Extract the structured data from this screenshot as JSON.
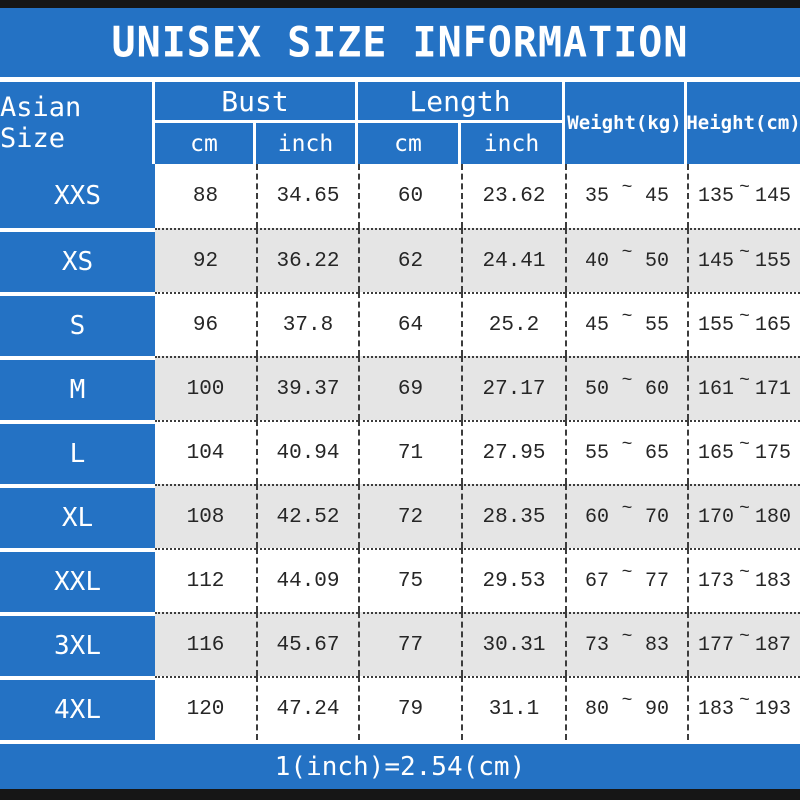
{
  "header": {
    "title": "UNISEX SIZE INFORMATION"
  },
  "footer": {
    "text": "1(inch)=2.54(cm)"
  },
  "colors": {
    "accent_blue": "#2472c4",
    "alt_row_gray": "#e5e5e5",
    "frame_black": "#161616",
    "separator_line": "#3c3c3c"
  },
  "table": {
    "size_header": "Asian Size",
    "groups": [
      {
        "label": "Bust",
        "sub": [
          "cm",
          "inch"
        ]
      },
      {
        "label": "Length",
        "sub": [
          "cm",
          "inch"
        ]
      }
    ],
    "weight_header": "Weight(kg)",
    "height_header": "Height(cm)",
    "tilde": "~",
    "rows": [
      {
        "size": "XXS",
        "bust_cm": "88",
        "bust_inch": "34.65",
        "length_cm": "60",
        "length_inch": "23.62",
        "weight": [
          "35",
          "45"
        ],
        "height": [
          "135",
          "145"
        ]
      },
      {
        "size": "XS",
        "bust_cm": "92",
        "bust_inch": "36.22",
        "length_cm": "62",
        "length_inch": "24.41",
        "weight": [
          "40",
          "50"
        ],
        "height": [
          "145",
          "155"
        ]
      },
      {
        "size": "S",
        "bust_cm": "96",
        "bust_inch": "37.8",
        "length_cm": "64",
        "length_inch": "25.2",
        "weight": [
          "45",
          "55"
        ],
        "height": [
          "155",
          "165"
        ]
      },
      {
        "size": "M",
        "bust_cm": "100",
        "bust_inch": "39.37",
        "length_cm": "69",
        "length_inch": "27.17",
        "weight": [
          "50",
          "60"
        ],
        "height": [
          "161",
          "171"
        ]
      },
      {
        "size": "L",
        "bust_cm": "104",
        "bust_inch": "40.94",
        "length_cm": "71",
        "length_inch": "27.95",
        "weight": [
          "55",
          "65"
        ],
        "height": [
          "165",
          "175"
        ]
      },
      {
        "size": "XL",
        "bust_cm": "108",
        "bust_inch": "42.52",
        "length_cm": "72",
        "length_inch": "28.35",
        "weight": [
          "60",
          "70"
        ],
        "height": [
          "170",
          "180"
        ]
      },
      {
        "size": "XXL",
        "bust_cm": "112",
        "bust_inch": "44.09",
        "length_cm": "75",
        "length_inch": "29.53",
        "weight": [
          "67",
          "77"
        ],
        "height": [
          "173",
          "183"
        ]
      },
      {
        "size": "3XL",
        "bust_cm": "116",
        "bust_inch": "45.67",
        "length_cm": "77",
        "length_inch": "30.31",
        "weight": [
          "73",
          "83"
        ],
        "height": [
          "177",
          "187"
        ]
      },
      {
        "size": "4XL",
        "bust_cm": "120",
        "bust_inch": "47.24",
        "length_cm": "79",
        "length_inch": "31.1",
        "weight": [
          "80",
          "90"
        ],
        "height": [
          "183",
          "193"
        ]
      }
    ]
  },
  "chart_data": {
    "type": "table",
    "title": "UNISEX SIZE INFORMATION",
    "columns": [
      "Asian Size",
      "Bust cm",
      "Bust inch",
      "Length cm",
      "Length inch",
      "Weight(kg)",
      "Height(cm)"
    ],
    "rows": [
      [
        "XXS",
        88,
        34.65,
        60,
        23.62,
        "35~45",
        "135~145"
      ],
      [
        "XS",
        92,
        36.22,
        62,
        24.41,
        "40~50",
        "145~155"
      ],
      [
        "S",
        96,
        37.8,
        64,
        25.2,
        "45~55",
        "155~165"
      ],
      [
        "M",
        100,
        39.37,
        69,
        27.17,
        "50~60",
        "161~171"
      ],
      [
        "L",
        104,
        40.94,
        71,
        27.95,
        "55~65",
        "165~175"
      ],
      [
        "XL",
        108,
        42.52,
        72,
        28.35,
        "60~70",
        "170~180"
      ],
      [
        "XXL",
        112,
        44.09,
        75,
        29.53,
        "67~77",
        "173~183"
      ],
      [
        "3XL",
        116,
        45.67,
        77,
        30.31,
        "73~83",
        "177~187"
      ],
      [
        "4XL",
        120,
        47.24,
        79,
        31.1,
        "80~90",
        "183~193"
      ]
    ],
    "footnote": "1(inch)=2.54(cm)"
  }
}
